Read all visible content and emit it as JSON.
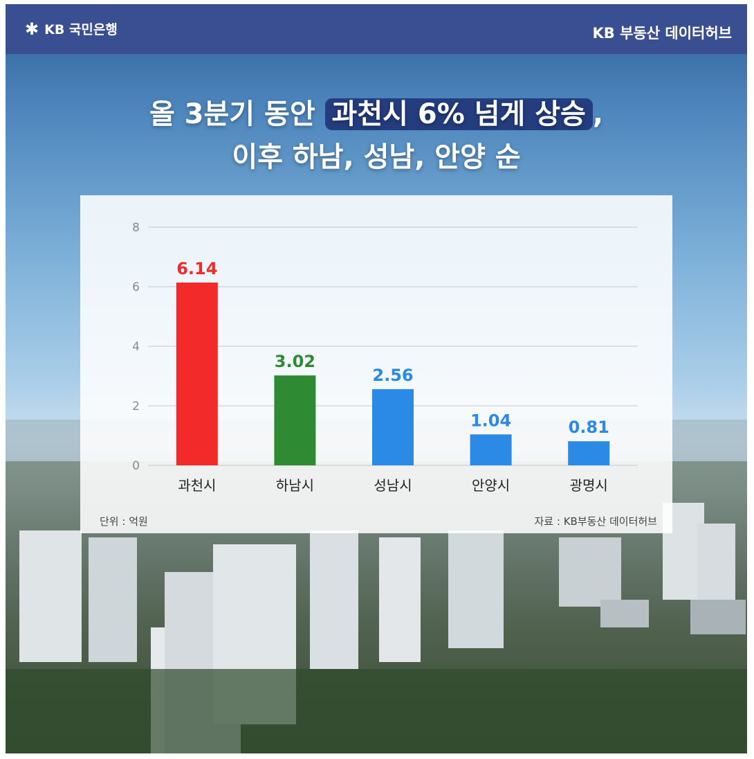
{
  "header": {
    "bank_name": "KB 국민은행",
    "brand": "KB 부동산 데이터허브"
  },
  "headline": {
    "line1_pre": "올 3분기 동안 ",
    "line1_highlight": "과천시 6% 넘게 상승",
    "line1_post": ",",
    "line2": "이후 하남, 성남, 안양 순"
  },
  "icons": {
    "logo": "kb-star-icon"
  },
  "chart_data": {
    "type": "bar",
    "categories": [
      "과천시",
      "하남시",
      "성남시",
      "안양시",
      "광명시"
    ],
    "values": [
      6.14,
      3.02,
      2.56,
      1.04,
      0.81
    ],
    "value_labels": [
      "6.14",
      "3.02",
      "2.56",
      "1.04",
      "0.81"
    ],
    "colors": [
      "#f22a2a",
      "#2e8b34",
      "#2b8ae6",
      "#2b8ae6",
      "#2b8ae6"
    ],
    "yticks": [
      0,
      2,
      4,
      6,
      8
    ],
    "ylim": [
      0,
      8
    ],
    "grid": true,
    "title": "",
    "xlabel": "",
    "ylabel": ""
  },
  "notes": {
    "unit": "단위 : 억원",
    "source": "자료 : KB부동산 데이터허브"
  }
}
